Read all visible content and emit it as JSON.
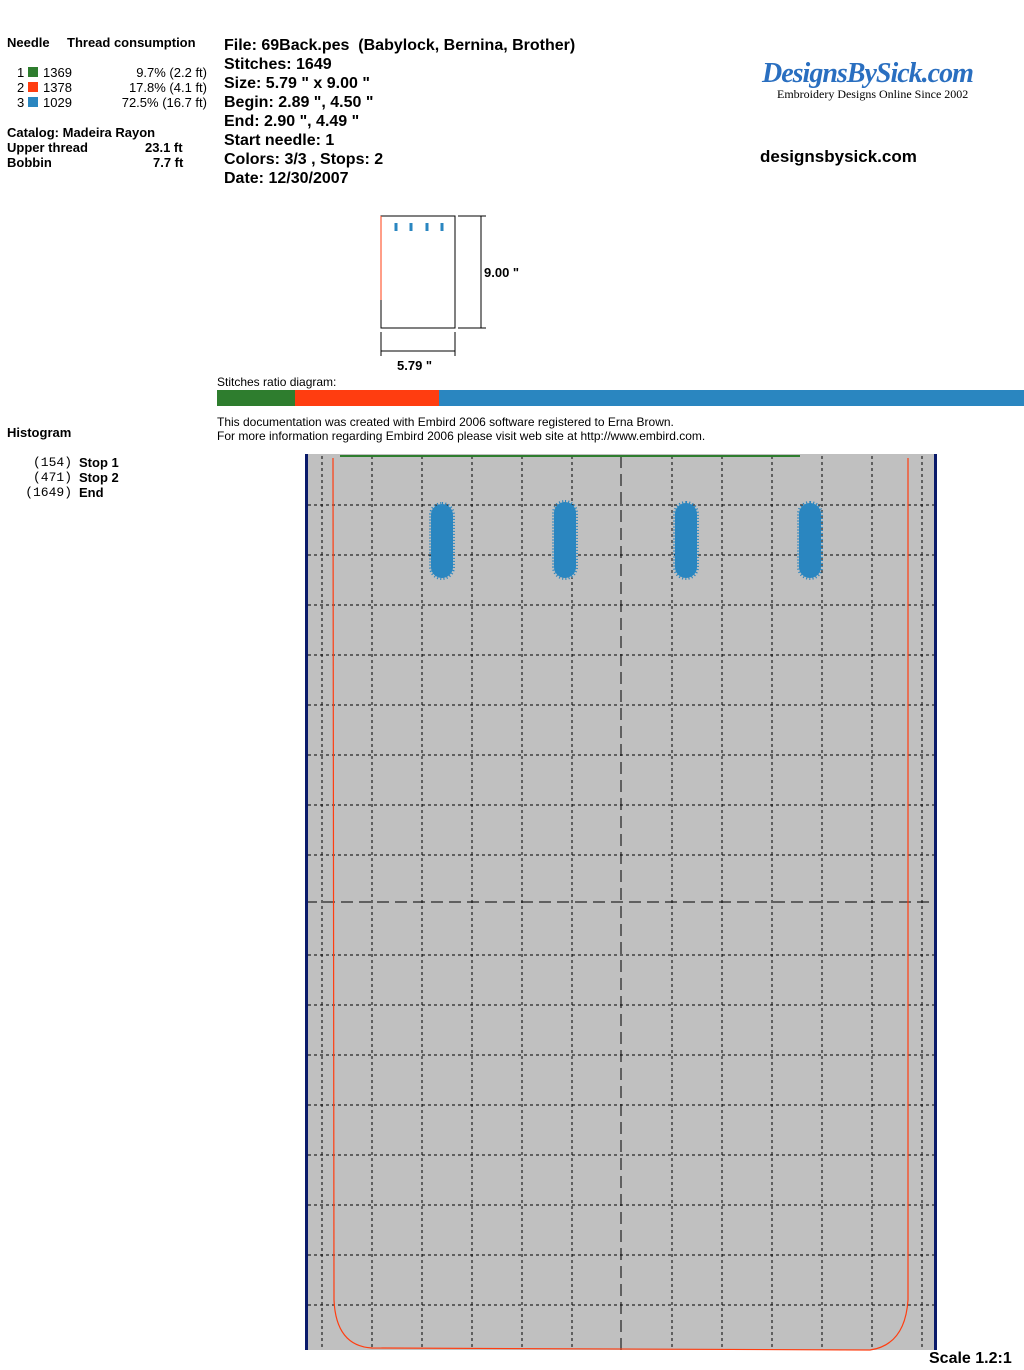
{
  "needles": {
    "header_needle": "Needle",
    "header_consumption": "Thread consumption",
    "rows": [
      {
        "number": "1",
        "color": "#2e7d2e",
        "stitches": "1369",
        "consumption": "9.7% (2.2 ft)"
      },
      {
        "number": "2",
        "color": "#ff3d10",
        "stitches": "1378",
        "consumption": "17.8% (4.1 ft)"
      },
      {
        "number": "3",
        "color": "#2a86c0",
        "stitches": "1029",
        "consumption": "72.5% (16.7 ft)"
      }
    ]
  },
  "catalog": {
    "title": "Catalog: Madeira Rayon",
    "upper_label": "Upper thread",
    "upper_value": "23.1 ft",
    "bobbin_label": "Bobbin",
    "bobbin_value": "7.7 ft"
  },
  "info": [
    "File: 69Back.pes  (Babylock, Bernina, Brother)",
    "Stitches: 1649",
    "Size: 5.79 \" x 9.00 \"",
    "Begin: 2.89 \", 4.50 \"",
    "End: 2.90 \", 4.49 \"",
    "Start needle: 1",
    "Colors: 3/3 , Stops: 2",
    "Date: 12/30/2007"
  ],
  "logo": {
    "name": "DesignsBySick.com",
    "tagline": "Embroidery Designs Online Since 2002",
    "website": "designsbysick.com"
  },
  "thumbnail": {
    "width_label": "5.79 \"",
    "height_label": "9.00 \""
  },
  "ratio": {
    "label": "Stitches ratio diagram:",
    "segments": [
      {
        "color": "#2e7d2e",
        "value": 9.7
      },
      {
        "color": "#ff3d10",
        "value": 17.8
      },
      {
        "color": "#2a86c0",
        "value": 72.5
      }
    ]
  },
  "note": [
    "This documentation was created with Embird 2006 software registered to Erna Brown.",
    "For more information regarding Embird 2006 please visit web site at http://www.embird.com."
  ],
  "histogram": {
    "title": "Histogram",
    "stops": [
      {
        "count": "(154)",
        "label": "Stop 1"
      },
      {
        "count": "(471)",
        "label": "Stop 2"
      },
      {
        "count": "(1649)",
        "label": "End"
      }
    ]
  },
  "scale": "Scale 1.2:1"
}
